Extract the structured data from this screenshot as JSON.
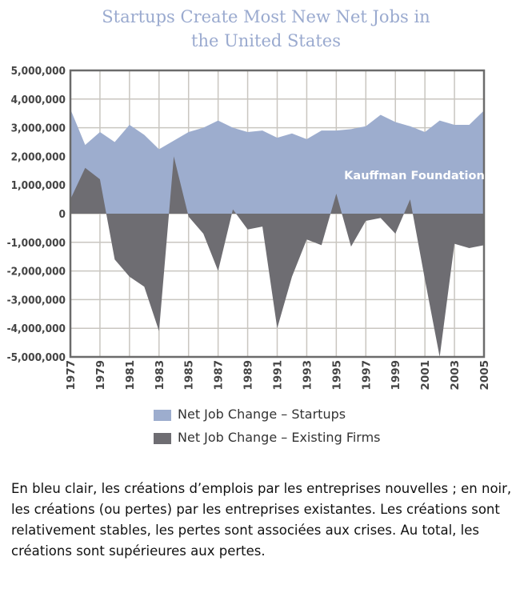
{
  "chart_data": {
    "type": "area",
    "title": "Startups Create Most New Net Jobs in the United States",
    "title_lines": [
      "Startups Create Most New Net Jobs in",
      "the United States"
    ],
    "annotation": "Kauffman Foundation",
    "x": [
      1977,
      1978,
      1979,
      1980,
      1981,
      1982,
      1983,
      1984,
      1985,
      1986,
      1987,
      1988,
      1989,
      1990,
      1991,
      1992,
      1993,
      1994,
      1995,
      1996,
      1997,
      1998,
      1999,
      2000,
      2001,
      2002,
      2003,
      2004,
      2005
    ],
    "x_tick_labels": [
      "1977",
      "1979",
      "1981",
      "1983",
      "1985",
      "1987",
      "1989",
      "1991",
      "1993",
      "1995",
      "1997",
      "1999",
      "2001",
      "2003",
      "2005"
    ],
    "y_tick_labels": [
      "5,000,000",
      "4,000,000",
      "3,000,000",
      "2,000,000",
      "1,000,000",
      "0",
      "-1,000,000",
      "-2,000,000",
      "-3,000,000",
      "-4,000,000",
      "-5,000,000"
    ],
    "ylim": [
      -5000000,
      5000000
    ],
    "grid": true,
    "legend_placement": "bottom",
    "series": [
      {
        "name": "Net Job Change – Startups",
        "color": "#9dadce",
        "values": [
          3650000,
          2400000,
          2850000,
          2500000,
          3100000,
          2750000,
          2250000,
          2550000,
          2850000,
          3000000,
          3250000,
          3000000,
          2850000,
          2900000,
          2650000,
          2800000,
          2600000,
          2900000,
          2900000,
          2950000,
          3050000,
          3450000,
          3200000,
          3050000,
          2850000,
          3250000,
          3100000,
          3100000,
          3600000
        ]
      },
      {
        "name": "Net Job Change – Existing Firms",
        "color": "#6e6d72",
        "values": [
          500000,
          1600000,
          1200000,
          -1600000,
          -2200000,
          -2550000,
          -4100000,
          2000000,
          -100000,
          -700000,
          -2000000,
          150000,
          -550000,
          -450000,
          -4000000,
          -2200000,
          -900000,
          -1100000,
          700000,
          -1150000,
          -250000,
          -150000,
          -700000,
          500000,
          -2300000,
          -5000000,
          -1050000,
          -1200000,
          -1100000
        ]
      }
    ]
  },
  "caption": "En bleu clair, les créations d’emplois par les entreprises nouvelles ; en noir, les créations (ou pertes) par les entreprises existantes. Les créations sont relativement stables, les pertes sont associées aux crises. Au total, les créations sont supérieures aux pertes."
}
